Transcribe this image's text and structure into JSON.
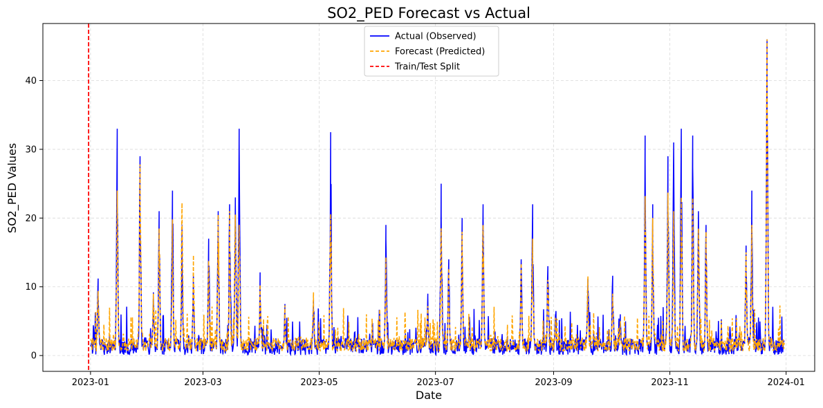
{
  "chart_data": {
    "type": "line",
    "title": "SO2_PED Forecast vs Actual",
    "xlabel": "Date",
    "ylabel": "SO2_PED Values",
    "x_type": "date",
    "xlim": [
      "2022-12-07",
      "2024-01-16"
    ],
    "ylim": [
      -2.3,
      48.3
    ],
    "x_ticks": [
      "2023-01-01",
      "2023-03-01",
      "2023-05-01",
      "2023-07-01",
      "2023-09-01",
      "2023-11-01",
      "2024-01-01"
    ],
    "x_tick_labels": [
      "2023-01",
      "2023-03",
      "2023-05",
      "2023-07",
      "2023-09",
      "2023-11",
      "2024-01"
    ],
    "y_ticks": [
      0,
      10,
      20,
      30,
      40
    ],
    "y_tick_labels": [
      "0",
      "10",
      "20",
      "30",
      "40"
    ],
    "grid": true,
    "legend_position": "top-center",
    "baseline": {
      "actual": 1.3,
      "forecast": 1.6
    },
    "series": [
      {
        "name": "Actual (Observed)",
        "color": "#0000ff",
        "style": "solid",
        "x": [
          "2023-01-05",
          "2023-01-15",
          "2023-01-27",
          "2023-02-03",
          "2023-02-06",
          "2023-02-13",
          "2023-02-18",
          "2023-02-24",
          "2023-03-04",
          "2023-03-09",
          "2023-03-15",
          "2023-03-18",
          "2023-03-20",
          "2023-03-31",
          "2023-04-13",
          "2023-04-28",
          "2023-05-07",
          "2023-06-05",
          "2023-06-27",
          "2023-07-04",
          "2023-07-08",
          "2023-07-15",
          "2023-07-26",
          "2023-08-15",
          "2023-08-21",
          "2023-08-29",
          "2023-09-02",
          "2023-09-19",
          "2023-10-02",
          "2023-10-06",
          "2023-10-19",
          "2023-10-23",
          "2023-10-31",
          "2023-11-03",
          "2023-11-07",
          "2023-11-13",
          "2023-11-16",
          "2023-11-20",
          "2023-12-11",
          "2023-12-14",
          "2023-12-22"
        ],
        "values": [
          11.2,
          33.0,
          29.0,
          9.2,
          21.0,
          24.0,
          19.0,
          12.0,
          17.0,
          21.0,
          22.0,
          23.0,
          33.0,
          12.1,
          7.5,
          8.1,
          32.5,
          19.0,
          9.0,
          25.0,
          14.0,
          20.0,
          22.0,
          14.0,
          22.0,
          13.0,
          6.0,
          11.2,
          11.6,
          6.0,
          32.0,
          22.0,
          29.0,
          31.0,
          33.0,
          32.0,
          21.0,
          19.0,
          16.0,
          24.0,
          46.0
        ]
      },
      {
        "name": "Forecast (Predicted)",
        "color": "#ffa500",
        "style": "dashed",
        "x": [
          "2023-01-05",
          "2023-01-15",
          "2023-01-27",
          "2023-02-03",
          "2023-02-06",
          "2023-02-13",
          "2023-02-18",
          "2023-02-24",
          "2023-03-04",
          "2023-03-09",
          "2023-03-15",
          "2023-03-18",
          "2023-03-20",
          "2023-03-31",
          "2023-04-13",
          "2023-04-28",
          "2023-05-07",
          "2023-06-05",
          "2023-06-27",
          "2023-07-04",
          "2023-07-08",
          "2023-07-15",
          "2023-07-26",
          "2023-08-15",
          "2023-08-21",
          "2023-08-29",
          "2023-09-02",
          "2023-09-19",
          "2023-10-02",
          "2023-10-06",
          "2023-10-19",
          "2023-10-23",
          "2023-10-31",
          "2023-11-03",
          "2023-11-07",
          "2023-11-13",
          "2023-11-16",
          "2023-11-20",
          "2023-12-11",
          "2023-12-14",
          "2023-12-22"
        ],
        "values": [
          9.4,
          24.0,
          27.8,
          9.0,
          18.5,
          19.8,
          22.2,
          14.6,
          13.8,
          20.5,
          21.0,
          20.5,
          19.0,
          10.3,
          7.3,
          9.2,
          20.6,
          14.3,
          7.2,
          18.5,
          12.7,
          18.0,
          19.0,
          13.4,
          17.0,
          11.0,
          5.5,
          11.5,
          9.0,
          5.0,
          23.2,
          20.0,
          23.7,
          21.0,
          23.0,
          22.9,
          18.5,
          18.0,
          15.0,
          19.0,
          46.0
        ]
      },
      {
        "name": "Train/Test Split",
        "color": "#ff0000",
        "style": "dashed",
        "x": [
          "2022-12-31"
        ]
      }
    ]
  }
}
